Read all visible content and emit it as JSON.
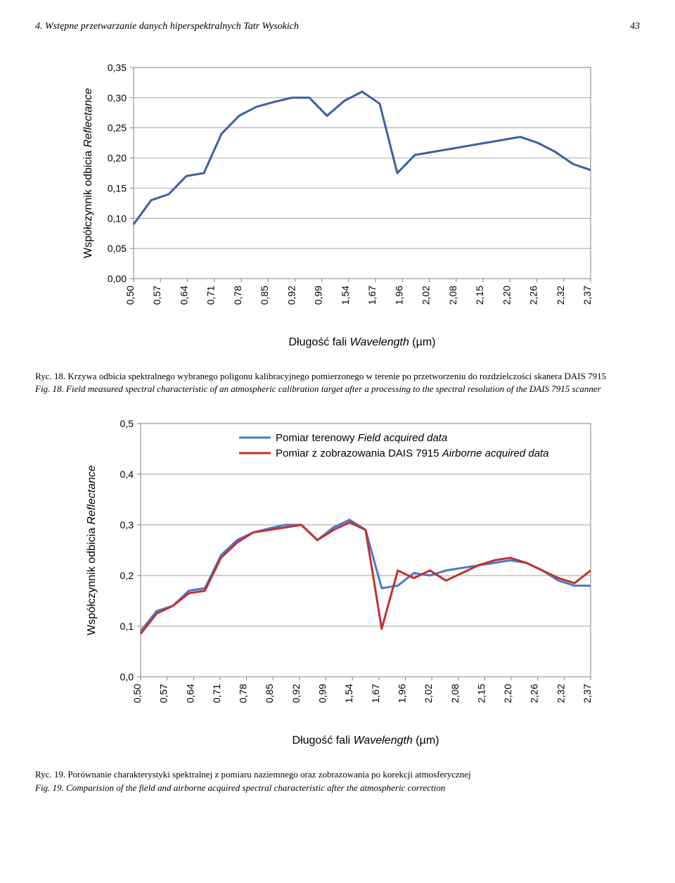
{
  "header": {
    "title": "4. Wstępne przetwarzanie danych hiperspektralnych Tatr Wysokich",
    "page_number": "43"
  },
  "chart1": {
    "type": "line",
    "xcategories": [
      "0,50",
      "0,57",
      "0,64",
      "0,71",
      "0,78",
      "0,85",
      "0,92",
      "0,99",
      "1,54",
      "1,67",
      "1,96",
      "2,02",
      "2,08",
      "2,15",
      "2,20",
      "2,26",
      "2,32",
      "2,37"
    ],
    "yticks": [
      "0,00",
      "0,05",
      "0,10",
      "0,15",
      "0,20",
      "0,25",
      "0,30",
      "0,35"
    ],
    "ylim": [
      0,
      0.35
    ],
    "values": [
      0.09,
      0.13,
      0.14,
      0.17,
      0.175,
      0.24,
      0.27,
      0.285,
      0.293,
      0.3,
      0.3,
      0.27,
      0.295,
      0.31,
      0.29,
      0.175,
      0.205,
      0.21,
      0.215,
      0.22,
      0.225,
      0.23,
      0.235,
      0.225,
      0.21,
      0.19,
      0.18
    ],
    "line_color": "#3c5ea8",
    "line_width": 3,
    "grid_color": "#808080",
    "background_color": "#ffffff",
    "border_color": "#808080",
    "ylabel_plain": "Współczynnik odbicia ",
    "ylabel_italic": "Reflectance",
    "xlabel_plain": "Długość fali ",
    "xlabel_italic": "Wavelength",
    "xlabel_unit": " (µm)",
    "tick_fontsize": 14,
    "label_fontsize": 16
  },
  "caption1": {
    "line1": "Ryc. 18. Krzywa odbicia spektralnego wybranego poligonu kalibracyjnego pomierzonego w terenie po przetworzeniu do rozdzielczości skanera DAIS 7915",
    "line2": "Fig. 18. Field measured spectral characteristic of an atmospheric calibration target after a processing to the spectral resolution of the DAIS 7915 scanner"
  },
  "chart2": {
    "type": "line",
    "xcategories": [
      "0,50",
      "0,57",
      "0,64",
      "0,71",
      "0,78",
      "0,85",
      "0,92",
      "0,99",
      "1,54",
      "1,67",
      "1,96",
      "2,02",
      "2,08",
      "2,15",
      "2,20",
      "2,26",
      "2,32",
      "2,37"
    ],
    "yticks": [
      "0,0",
      "0,1",
      "0,2",
      "0,3",
      "0,4",
      "0,5"
    ],
    "ylim": [
      0,
      0.5
    ],
    "series": [
      {
        "name_plain": "Pomiar terenowy ",
        "name_italic": "Field acquired data",
        "color": "#4a7ac8",
        "values": [
          0.09,
          0.13,
          0.14,
          0.17,
          0.175,
          0.24,
          0.27,
          0.285,
          0.293,
          0.3,
          0.3,
          0.27,
          0.295,
          0.31,
          0.29,
          0.175,
          0.18,
          0.205,
          0.2,
          0.21,
          0.215,
          0.22,
          0.225,
          0.23,
          0.225,
          0.21,
          0.19,
          0.18,
          0.18
        ],
        "line_width": 3
      },
      {
        "name_plain": "Pomiar z zobrazowania DAIS 7915 ",
        "name_italic": "Airborne acquired data",
        "color": "#c23030",
        "values": [
          0.085,
          0.125,
          0.14,
          0.165,
          0.17,
          0.235,
          0.265,
          0.285,
          0.29,
          0.295,
          0.3,
          0.27,
          0.29,
          0.305,
          0.29,
          0.095,
          0.21,
          0.195,
          0.21,
          0.19,
          0.205,
          0.22,
          0.23,
          0.235,
          0.225,
          0.21,
          0.195,
          0.185,
          0.21
        ],
        "line_width": 3
      }
    ],
    "grid_color": "#808080",
    "background_color": "#ffffff",
    "border_color": "#808080",
    "ylabel_plain": "Współczynnik odbicia ",
    "ylabel_italic": "Reflectance",
    "xlabel_plain": "Długość fali ",
    "xlabel_italic": "Wavelength",
    "xlabel_unit": " (µm)"
  },
  "caption2": {
    "line1": "Ryc. 19. Porównanie charakterystyki spektralnej z pomiaru naziemnego oraz zobrazowania po korekcji atmosferycznej",
    "line2": "Fig. 19. Comparision of the field and airborne acquired spectral characteristic after the atmospheric correction"
  }
}
